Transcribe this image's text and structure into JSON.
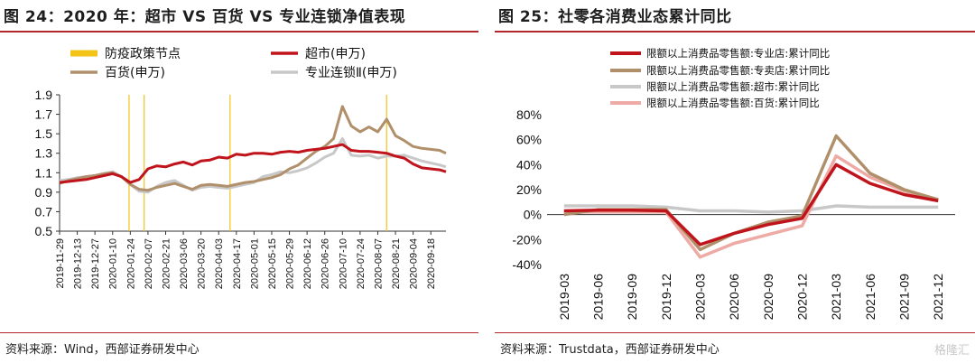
{
  "left": {
    "title": "图 24：2020 年：超市 VS 百货 VS 专业连锁净值表现",
    "source": "资料来源：Wind，西部证券研发中心"
  },
  "right": {
    "title": "图 25：社零各消费业态累计同比",
    "source": "资料来源：Trustdata，西部证券研发中心"
  },
  "watermark": "格隆汇",
  "colors": {
    "rule": "#b3262c"
  },
  "chart_data": [
    {
      "type": "line",
      "title": "",
      "xlabel": "",
      "ylabel": "",
      "ylim": [
        0.5,
        1.9
      ],
      "yticks": [
        "0.5",
        "0.7",
        "0.9",
        "1.1",
        "1.3",
        "1.5",
        "1.7",
        "1.9"
      ],
      "x_ticks": [
        "2019-11-29",
        "2019-12-13",
        "2019-12-27",
        "2020-01-10",
        "2020-01-24",
        "2020-02-07",
        "2020-02-21",
        "2020-03-06",
        "2020-03-20",
        "2020-04-03",
        "2020-04-17",
        "2020-05-01",
        "2020-05-15",
        "2020-05-29",
        "2020-06-12",
        "2020-06-26",
        "2020-07-10",
        "2020-07-24",
        "2020-08-07",
        "2020-08-21",
        "2020-09-04",
        "2020-09-18"
      ],
      "legend": [
        "防疫政策节点",
        "超市(申万)",
        "百货(申万)",
        "专业连锁Ⅱ(申万)"
      ],
      "policy_dates": [
        "2020-01-23",
        "2020-02-04",
        "2020-04-12",
        "2020-08-14"
      ],
      "policy_color": "#f3c318",
      "dates": [
        "2019-11-29",
        "2019-12-06",
        "2019-12-13",
        "2019-12-20",
        "2019-12-27",
        "2020-01-03",
        "2020-01-10",
        "2020-01-17",
        "2020-01-24",
        "2020-01-31",
        "2020-02-07",
        "2020-02-14",
        "2020-02-21",
        "2020-02-28",
        "2020-03-06",
        "2020-03-13",
        "2020-03-20",
        "2020-03-27",
        "2020-04-03",
        "2020-04-10",
        "2020-04-17",
        "2020-04-24",
        "2020-05-01",
        "2020-05-08",
        "2020-05-15",
        "2020-05-22",
        "2020-05-29",
        "2020-06-05",
        "2020-06-12",
        "2020-06-19",
        "2020-06-26",
        "2020-07-03",
        "2020-07-10",
        "2020-07-17",
        "2020-07-24",
        "2020-07-31",
        "2020-08-07",
        "2020-08-14",
        "2020-08-21",
        "2020-08-28",
        "2020-09-04",
        "2020-09-11",
        "2020-09-18",
        "2020-09-25",
        "2020-09-30"
      ],
      "series": [
        {
          "name": "超市(申万)",
          "color": "#c0141c",
          "values": [
            1.0,
            1.01,
            1.02,
            1.03,
            1.05,
            1.07,
            1.09,
            1.06,
            1.0,
            1.03,
            1.14,
            1.17,
            1.16,
            1.19,
            1.21,
            1.18,
            1.22,
            1.23,
            1.26,
            1.25,
            1.29,
            1.28,
            1.3,
            1.3,
            1.29,
            1.31,
            1.32,
            1.31,
            1.33,
            1.34,
            1.35,
            1.37,
            1.39,
            1.33,
            1.32,
            1.32,
            1.31,
            1.3,
            1.27,
            1.25,
            1.19,
            1.15,
            1.14,
            1.13,
            1.11
          ]
        },
        {
          "name": "百货(申万)",
          "color": "#b0906b",
          "values": [
            0.99,
            1.02,
            1.04,
            1.06,
            1.07,
            1.09,
            1.1,
            1.06,
            0.98,
            0.93,
            0.92,
            0.95,
            0.97,
            0.99,
            0.96,
            0.93,
            0.97,
            0.98,
            0.97,
            0.96,
            0.98,
            1.0,
            1.01,
            1.03,
            1.05,
            1.08,
            1.14,
            1.18,
            1.25,
            1.32,
            1.37,
            1.45,
            1.78,
            1.58,
            1.52,
            1.57,
            1.52,
            1.65,
            1.48,
            1.43,
            1.37,
            1.35,
            1.34,
            1.33,
            1.3
          ]
        },
        {
          "name": "专业连锁Ⅱ(申万)",
          "color": "#c8c8c8",
          "values": [
            1.02,
            1.03,
            1.05,
            1.06,
            1.07,
            1.09,
            1.11,
            1.06,
            0.98,
            0.91,
            0.9,
            0.96,
            1.0,
            1.02,
            0.97,
            0.92,
            0.95,
            0.96,
            0.95,
            0.94,
            0.96,
            0.98,
            1.0,
            1.06,
            1.08,
            1.11,
            1.1,
            1.12,
            1.15,
            1.2,
            1.26,
            1.3,
            1.45,
            1.28,
            1.27,
            1.28,
            1.25,
            1.27,
            1.27,
            1.28,
            1.25,
            1.22,
            1.2,
            1.18,
            1.16
          ]
        }
      ]
    },
    {
      "type": "line",
      "title": "",
      "xlabel": "",
      "ylabel": "",
      "ylim": [
        -40,
        80
      ],
      "yticks": [
        "-40%",
        "-20%",
        "0%",
        "20%",
        "40%",
        "60%",
        "80%"
      ],
      "categories": [
        "2019-03",
        "2019-06",
        "2019-09",
        "2019-12",
        "2020-03",
        "2020-06",
        "2020-09",
        "2020-12",
        "2021-03",
        "2021-06",
        "2021-09",
        "2021-12"
      ],
      "legend": [
        "限额以上消费品零售额:专业店:累计同比",
        "限额以上消费品零售额:专卖店:累计同比",
        "限额以上消费品零售额:超市:累计同比",
        "限额以上消费品零售额:百货:累计同比"
      ],
      "series": [
        {
          "name": "限额以上消费品零售额:专业店:累计同比",
          "color": "#c0141c",
          "values": [
            3,
            3.5,
            3.5,
            3,
            -24,
            -15,
            -8,
            -3,
            40,
            25,
            16,
            11
          ]
        },
        {
          "name": "限额以上消费品零售额:专卖店:累计同比",
          "color": "#b0906b",
          "values": [
            0,
            4,
            4,
            4,
            -28,
            -15,
            -6,
            -1,
            63,
            33,
            20,
            12
          ]
        },
        {
          "name": "限额以上消费品零售额:超市:累计同比",
          "color": "#c8c8c8",
          "values": [
            7,
            7,
            7,
            6,
            3,
            3,
            2,
            3,
            7,
            6,
            6,
            6
          ]
        },
        {
          "name": "限额以上消费品零售额:百货:累计同比",
          "color": "#eeaaa4",
          "values": [
            2,
            2,
            2,
            2,
            -34,
            -23,
            -16,
            -9,
            47,
            30,
            19,
            12
          ]
        }
      ]
    }
  ]
}
